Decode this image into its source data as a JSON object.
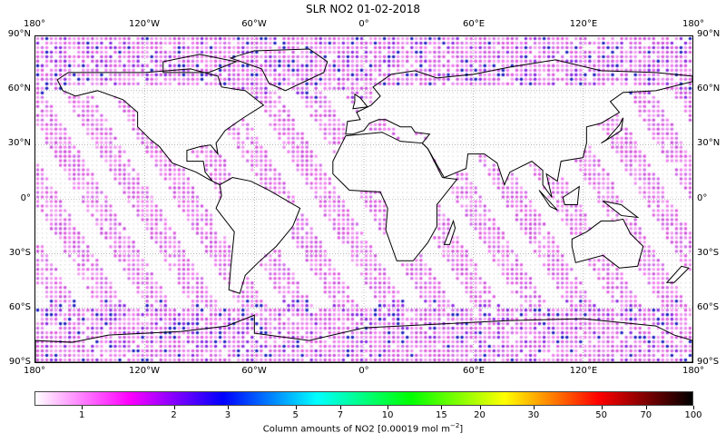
{
  "title": "SLR NO2 01-02-2018",
  "map": {
    "lon_ticks": [
      "180°",
      "120°W",
      "60°W",
      "0°",
      "60°E",
      "120°E",
      "180°"
    ],
    "lat_ticks": [
      "90°N",
      "60°N",
      "30°N",
      "0°",
      "30°S",
      "60°S",
      "90°S"
    ],
    "lon_range": [
      -180,
      180
    ],
    "lat_range": [
      -90,
      90
    ],
    "grid_spacing_deg": 30,
    "sample_color_typical": "#e070e0",
    "no_data_color": "#cccccc"
  },
  "colorbar": {
    "label": "Column amounts of NO2 [0.00019 mol m",
    "label_sup": "−2",
    "label_end": "]",
    "scale": "log",
    "range": [
      0.7,
      100
    ],
    "ticks": [
      "1",
      "2",
      "3",
      "5",
      "7",
      "10",
      "15",
      "20",
      "30",
      "50",
      "70",
      "100"
    ],
    "colors": [
      "#ffffff",
      "#ff00ff",
      "#0000ff",
      "#00ffff",
      "#00ff00",
      "#ffff00",
      "#ff0000",
      "#000000"
    ]
  }
}
